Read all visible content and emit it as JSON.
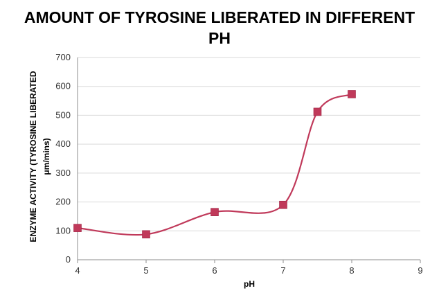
{
  "chart_data": {
    "type": "scatter",
    "title_lines": [
      "AMOUNT OF TYROSINE LIBERATED IN DIFFERENT",
      "PH"
    ],
    "xlabel": "pH",
    "ylabel_lines": [
      "ENZYME  ACTIVITY (TYROSINE  LIBERATED",
      "μm/mins)"
    ],
    "xlim": [
      4,
      9
    ],
    "ylim": [
      0,
      700
    ],
    "x_ticks": [
      "4",
      "5",
      "6",
      "7",
      "8",
      "9"
    ],
    "y_ticks": [
      "0",
      "100",
      "200",
      "300",
      "400",
      "500",
      "600",
      "700"
    ],
    "grid": "horizontal",
    "legend": "none",
    "series": [
      {
        "x": [
          4,
          5,
          6,
          7,
          7.5,
          8
        ],
        "y": [
          110,
          88,
          165,
          190,
          512,
          573
        ],
        "color": "#c0395a",
        "marker": "square",
        "line": "smooth"
      }
    ]
  }
}
